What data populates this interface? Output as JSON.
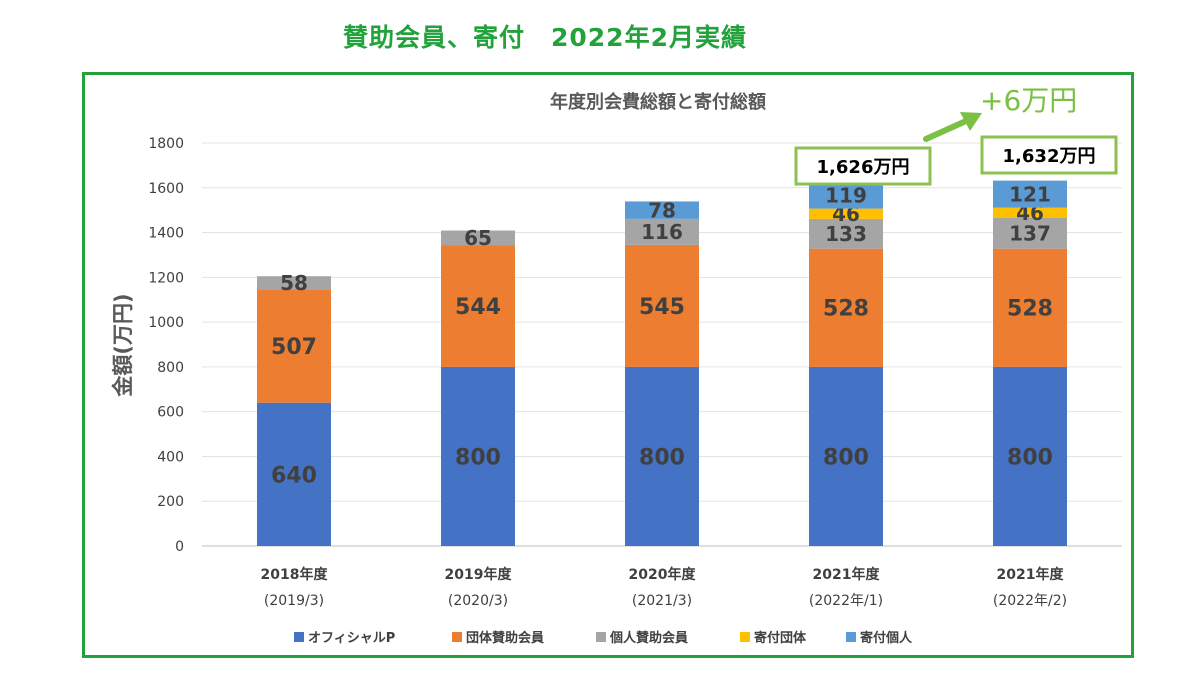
{
  "page_title": "賛助会員、寄付　2022年2月実績",
  "colors": {
    "accent_green": "#22a23a",
    "callout_arrow": "#7ac043",
    "callout_border": "#8cc152"
  },
  "chart_data": {
    "type": "bar",
    "stacked": true,
    "title": "年度別会費総額と寄付総額",
    "ylabel": "金額(万円)",
    "xlabel": "",
    "ylim": [
      0,
      1800
    ],
    "yticks": [
      0,
      200,
      400,
      600,
      800,
      1000,
      1200,
      1400,
      1600,
      1800
    ],
    "grid": true,
    "legend_position": "bottom",
    "categories": [
      [
        "2018年度",
        "(2019/3)"
      ],
      [
        "2019年度",
        "(2020/3)"
      ],
      [
        "2020年度",
        "(2021/3)"
      ],
      [
        "2021年度",
        "(2022年/1)"
      ],
      [
        "2021年度",
        "(2022年/2)"
      ]
    ],
    "series": [
      {
        "name": "オフィシャルP",
        "color": "#4472c4",
        "values": [
          640,
          800,
          800,
          800,
          800
        ]
      },
      {
        "name": "団体賛助会員",
        "color": "#ed7d31",
        "values": [
          507,
          544,
          545,
          528,
          528
        ]
      },
      {
        "name": "個人賛助会員",
        "color": "#a5a5a5",
        "values": [
          58,
          65,
          116,
          133,
          137
        ]
      },
      {
        "name": "寄付団体",
        "color": "#ffc000",
        "values": [
          0,
          0,
          0,
          46,
          46
        ]
      },
      {
        "name": "寄付個人",
        "color": "#5b9bd5",
        "values": [
          0,
          0,
          78,
          119,
          121
        ]
      }
    ],
    "totals_callouts": [
      {
        "category_index": 3,
        "label": "1,626万円"
      },
      {
        "category_index": 4,
        "label": "1,632万円"
      }
    ],
    "annotation": "+6万円"
  }
}
